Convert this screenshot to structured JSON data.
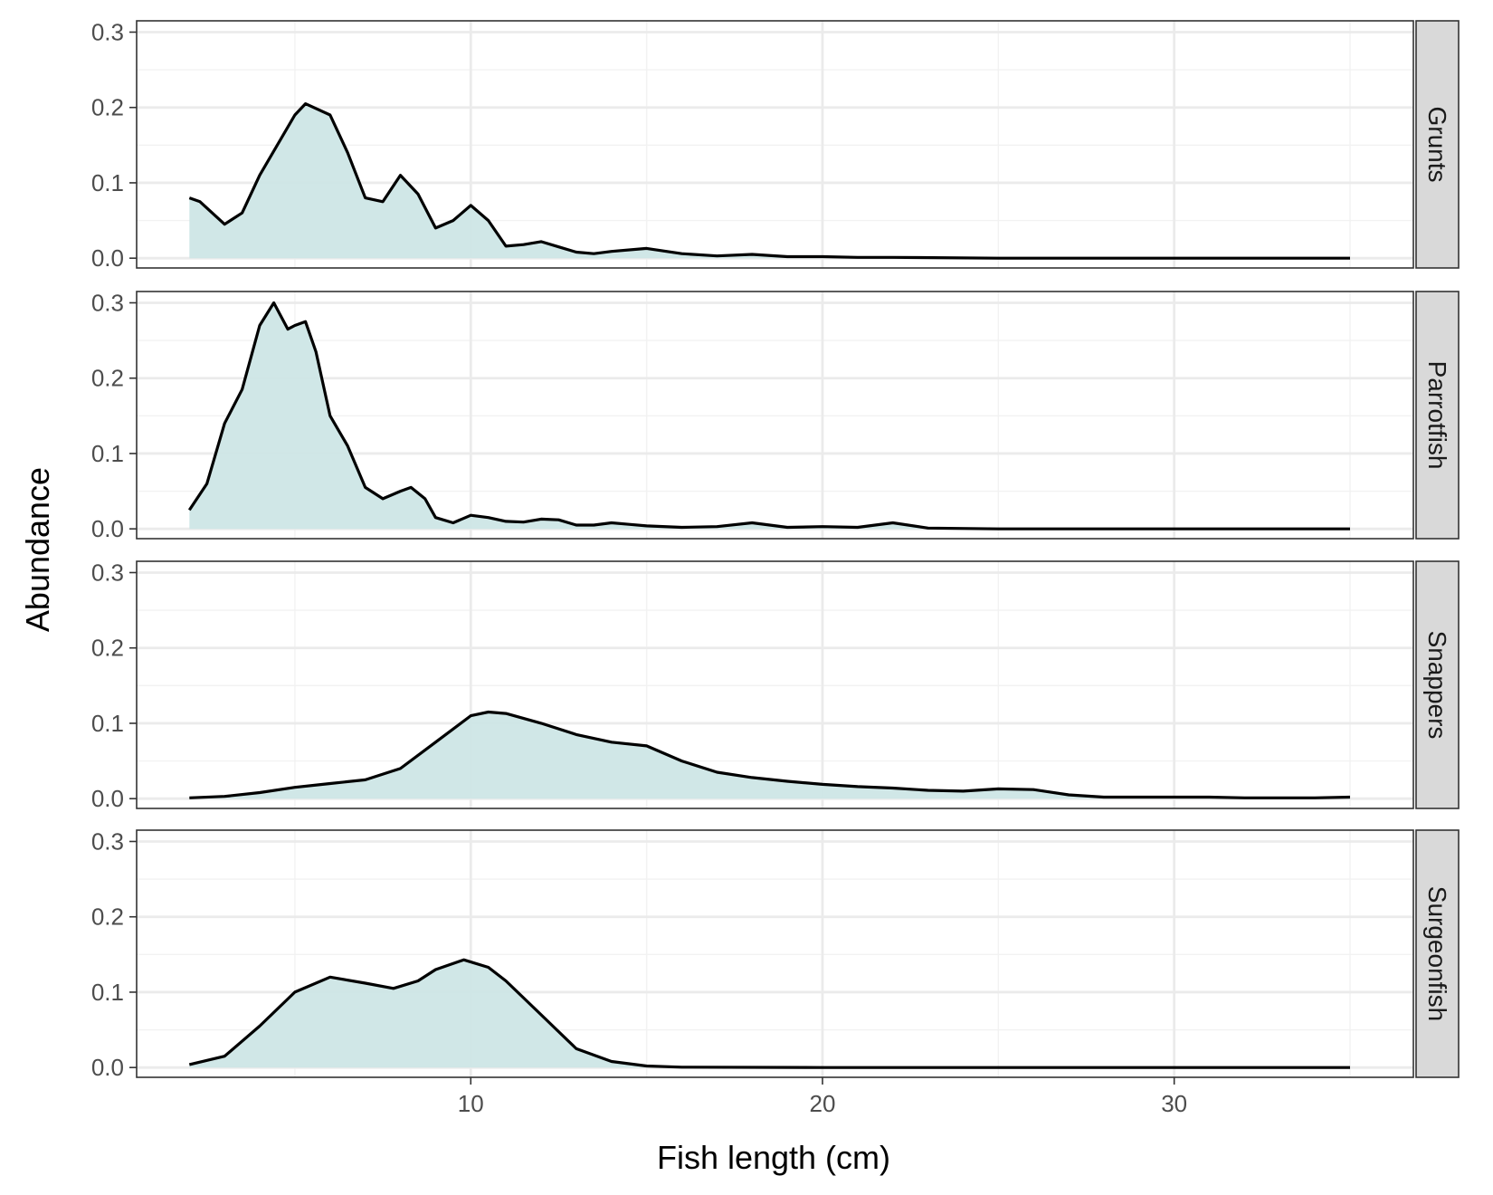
{
  "chart_data": {
    "type": "area",
    "facet_layout": "rows",
    "xlabel": "Fish length (cm)",
    "ylabel": "Abundance",
    "xlim": [
      0.5,
      36.8
    ],
    "ylim": [
      -0.013,
      0.315
    ],
    "x_ticks": [
      10,
      20,
      30
    ],
    "y_ticks": [
      0.0,
      0.1,
      0.2,
      0.3
    ],
    "grid": true,
    "colors": {
      "fill": "#cde6e6",
      "line": "#000000",
      "strip": "#d9d9d9",
      "grid_major": "#ebebeb",
      "grid_minor": "#f2f2f2"
    },
    "panels": [
      {
        "name": "Grunts",
        "x": [
          2,
          2.3,
          3,
          3.5,
          4,
          5,
          5.3,
          6,
          6.5,
          7,
          7.5,
          8,
          8.5,
          9,
          9.5,
          10,
          10.5,
          11,
          11.5,
          12,
          12.5,
          13,
          13.5,
          14,
          15,
          16,
          17,
          18,
          19,
          20,
          21,
          22,
          25,
          30,
          35
        ],
        "y": [
          0.08,
          0.075,
          0.045,
          0.06,
          0.11,
          0.19,
          0.205,
          0.19,
          0.14,
          0.08,
          0.075,
          0.11,
          0.085,
          0.04,
          0.05,
          0.07,
          0.05,
          0.016,
          0.018,
          0.022,
          0.015,
          0.008,
          0.006,
          0.009,
          0.013,
          0.006,
          0.003,
          0.005,
          0.002,
          0.002,
          0.001,
          0.001,
          0.0,
          0.0,
          0.0
        ]
      },
      {
        "name": "Parrotfish",
        "x": [
          2,
          2.5,
          3,
          3.5,
          4,
          4.4,
          4.8,
          5,
          5.3,
          5.6,
          6,
          6.5,
          7,
          7.5,
          8,
          8.3,
          8.7,
          9,
          9.5,
          10,
          10.5,
          11,
          11.5,
          12,
          12.5,
          13,
          13.5,
          14,
          14.5,
          15,
          16,
          17,
          18,
          19,
          20,
          21,
          22,
          23,
          25,
          30,
          35
        ],
        "y": [
          0.025,
          0.06,
          0.14,
          0.185,
          0.27,
          0.3,
          0.265,
          0.27,
          0.275,
          0.235,
          0.15,
          0.11,
          0.055,
          0.04,
          0.05,
          0.055,
          0.04,
          0.015,
          0.008,
          0.018,
          0.015,
          0.01,
          0.009,
          0.013,
          0.012,
          0.005,
          0.005,
          0.008,
          0.006,
          0.004,
          0.002,
          0.003,
          0.008,
          0.002,
          0.003,
          0.002,
          0.008,
          0.001,
          0.0,
          0.0,
          0.0
        ]
      },
      {
        "name": "Snappers",
        "x": [
          2,
          3,
          4,
          5,
          6,
          7,
          8,
          9,
          10,
          10.5,
          11,
          12,
          13,
          14,
          15,
          16,
          17,
          18,
          19,
          20,
          21,
          22,
          23,
          24,
          25,
          26,
          27,
          28,
          29,
          30,
          31,
          32,
          33,
          34,
          35
        ],
        "y": [
          0.001,
          0.003,
          0.008,
          0.015,
          0.02,
          0.025,
          0.04,
          0.075,
          0.11,
          0.115,
          0.113,
          0.1,
          0.085,
          0.075,
          0.07,
          0.05,
          0.035,
          0.028,
          0.023,
          0.019,
          0.016,
          0.014,
          0.011,
          0.01,
          0.013,
          0.012,
          0.005,
          0.002,
          0.002,
          0.002,
          0.002,
          0.001,
          0.001,
          0.001,
          0.002
        ]
      },
      {
        "name": "Surgeonfish",
        "x": [
          2,
          3,
          4,
          5,
          6,
          7,
          7.8,
          8.5,
          9,
          9.8,
          10.5,
          11,
          12,
          13,
          14,
          15,
          16,
          20,
          25,
          30,
          35
        ],
        "y": [
          0.004,
          0.015,
          0.055,
          0.1,
          0.12,
          0.112,
          0.105,
          0.115,
          0.13,
          0.143,
          0.133,
          0.115,
          0.07,
          0.025,
          0.008,
          0.002,
          0.0005,
          0.0,
          0.0,
          0.0,
          0.0
        ]
      }
    ]
  }
}
